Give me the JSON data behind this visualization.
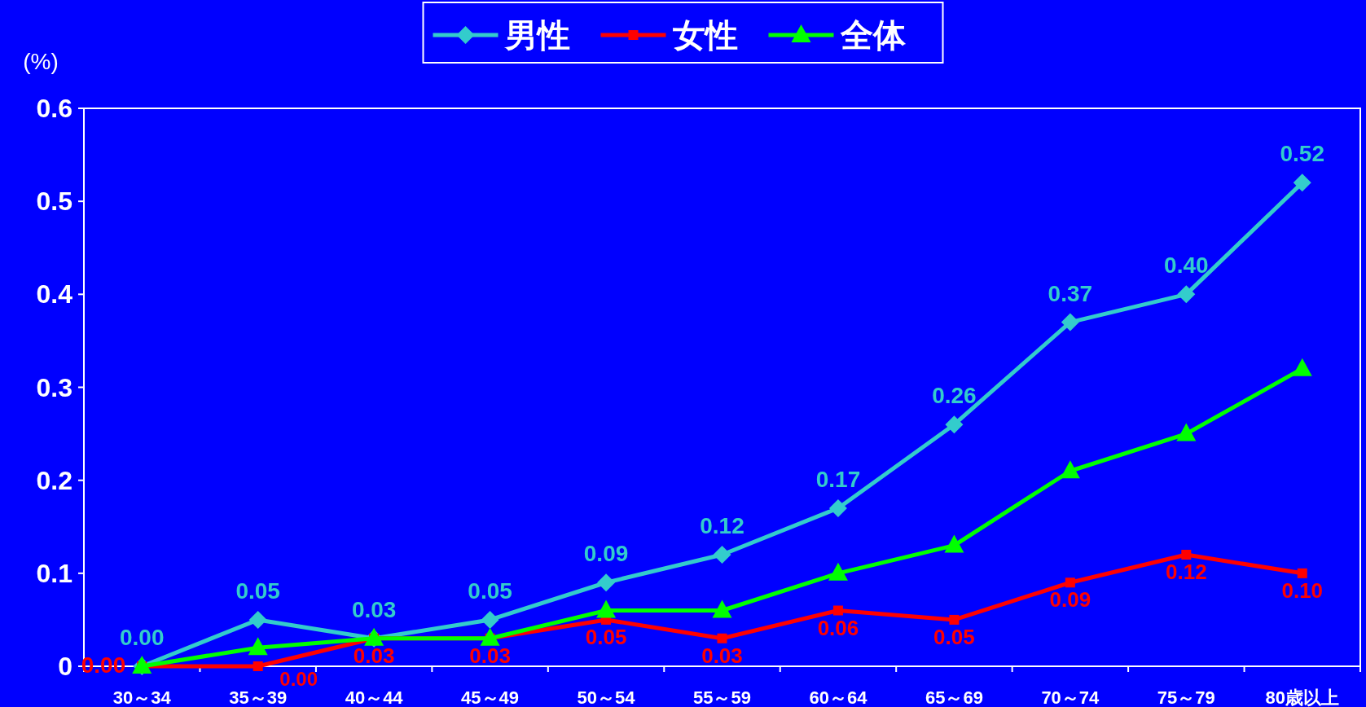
{
  "chart_data": {
    "type": "line",
    "ylabel": "(%)",
    "categories": [
      "30～34",
      "35～39",
      "40～44",
      "45～49",
      "50～54",
      "55～59",
      "60～64",
      "65～69",
      "70～74",
      "75～79",
      "80歳以上"
    ],
    "series": [
      {
        "name": "男性",
        "color": "#33cccc",
        "marker": "diamond",
        "values": [
          0,
          0.05,
          0.03,
          0.05,
          0.09,
          0.12,
          0.17,
          0.26,
          0.37,
          0.4,
          0.52
        ],
        "value_labels": [
          "0.00",
          "0.05",
          "0.03",
          "0.05",
          "0.09",
          "0.12",
          "0.17",
          "0.26",
          "0.37",
          "0.40",
          "0.52"
        ]
      },
      {
        "name": "女性",
        "color": "#ff0000",
        "marker": "square",
        "values": [
          0,
          0,
          0.03,
          0.03,
          0.05,
          0.03,
          0.06,
          0.05,
          0.09,
          0.12,
          0.1
        ],
        "value_labels": [
          "0.00",
          "0.00",
          "0.03",
          "0.03",
          "0.05",
          "0.03",
          "0.06",
          "0.05",
          "0.09",
          "0.12",
          "0.10"
        ]
      },
      {
        "name": "全体",
        "color": "#00ff00",
        "marker": "triangle",
        "values": [
          0,
          0.02,
          0.03,
          0.03,
          0.06,
          0.06,
          0.1,
          0.13,
          0.21,
          0.25,
          0.32
        ]
      }
    ],
    "ylim": [
      0,
      0.6
    ],
    "yticks": [
      0,
      0.1,
      0.2,
      0.3,
      0.4,
      0.5,
      0.6
    ],
    "grid": false,
    "legend": "top",
    "line_style": "solid"
  }
}
